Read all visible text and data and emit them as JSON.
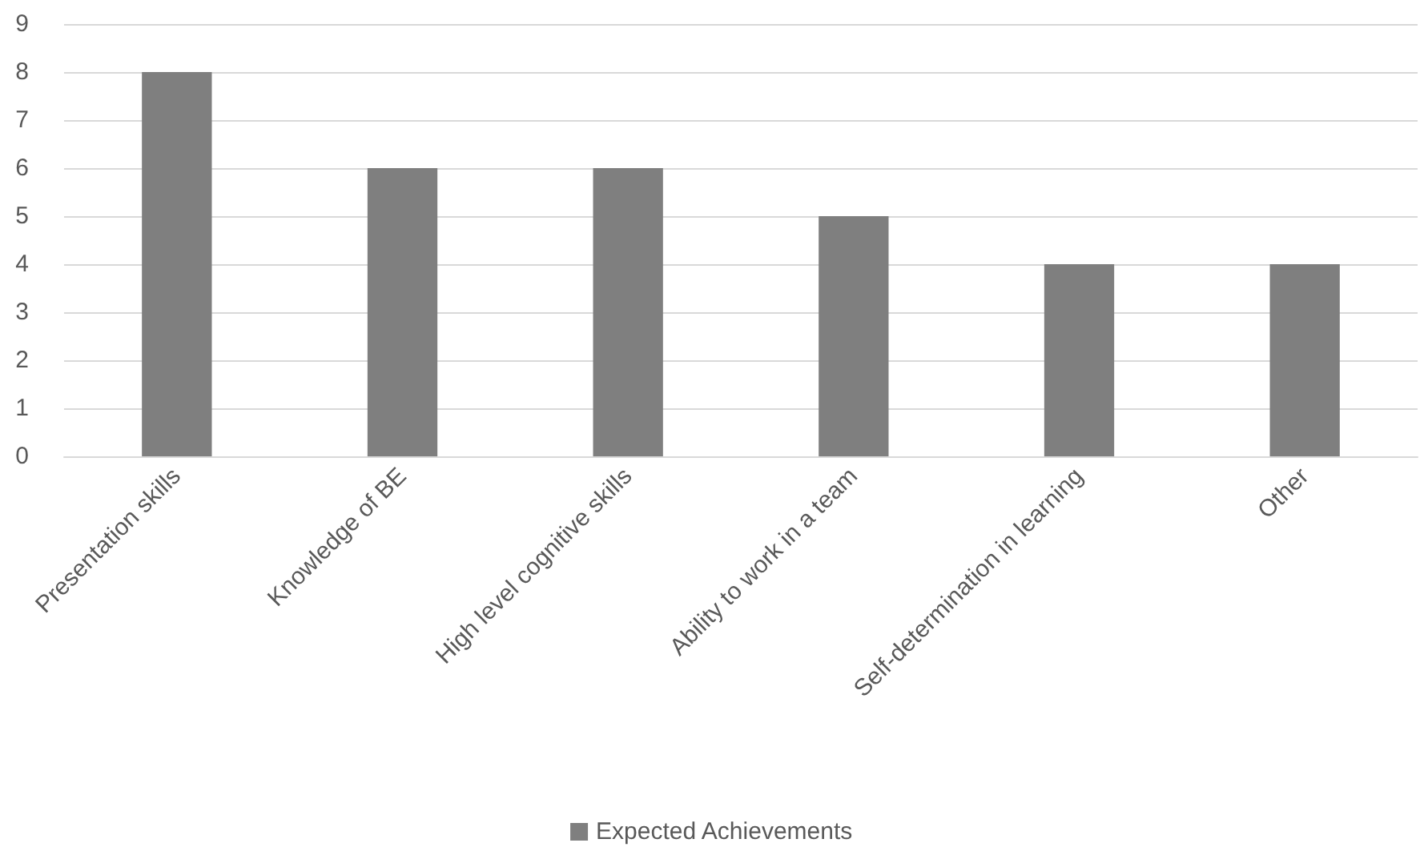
{
  "chart_data": {
    "type": "bar",
    "categories": [
      "Presentation skills",
      "Knowledge of BE",
      "High level cognitive skills",
      "Ability to work in a team",
      "Self-determination in learning",
      "Other"
    ],
    "series": [
      {
        "name": "Expected Achievements",
        "color": "#7f7f7f",
        "values": [
          8,
          6,
          6,
          5,
          4,
          4
        ]
      }
    ],
    "ylim": [
      0,
      9
    ],
    "yticks": [
      0,
      1,
      2,
      3,
      4,
      5,
      6,
      7,
      8,
      9
    ],
    "grid": "y",
    "legend": "bottom"
  }
}
